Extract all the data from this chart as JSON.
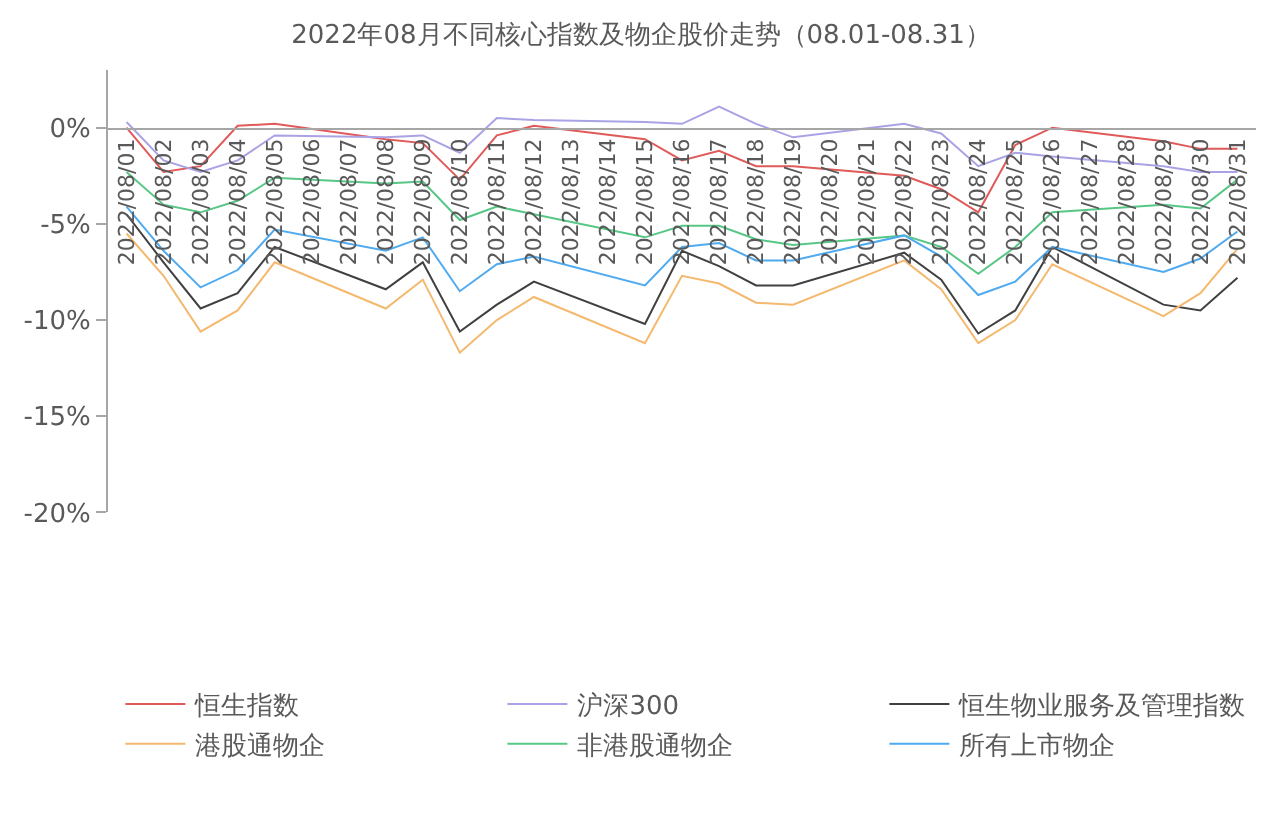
{
  "chart_data": {
    "type": "line",
    "title": "2022年08月不同核心指数及物企股价走势（08.01-08.31）",
    "x": [
      "2022-08-01",
      "2022-08-02",
      "2022-08-03",
      "2022-08-04",
      "2022-08-05",
      "2022-08-08",
      "2022-08-09",
      "2022-08-10",
      "2022-08-11",
      "2022-08-12",
      "2022-08-15",
      "2022-08-16",
      "2022-08-17",
      "2022-08-18",
      "2022-08-19",
      "2022-08-22",
      "2022-08-23",
      "2022-08-24",
      "2022-08-25",
      "2022-08-26",
      "2022-08-29",
      "2022-08-30",
      "2022-08-31"
    ],
    "series": [
      {
        "name": "恒生指数",
        "color": "#e05a5a",
        "values": [
          0.0,
          -2.3,
          -2.0,
          0.1,
          0.2,
          -0.6,
          -0.8,
          -2.7,
          -0.4,
          0.1,
          -0.6,
          -1.7,
          -1.2,
          -2.0,
          -2.0,
          -2.5,
          -3.2,
          -4.4,
          -0.9,
          0.0,
          -0.7,
          -1.1,
          -1.1
        ]
      },
      {
        "name": "沪深300",
        "color": "#a9a3e6",
        "values": [
          0.3,
          -1.7,
          -2.3,
          -1.7,
          -0.4,
          -0.5,
          -0.4,
          -1.3,
          0.5,
          0.4,
          0.3,
          0.2,
          1.1,
          0.2,
          -0.5,
          0.2,
          -0.3,
          -2.0,
          -1.3,
          -1.5,
          -2.0,
          -2.3,
          -2.3
        ]
      },
      {
        "name": "恒生物业服务及管理指数",
        "color": "#404040",
        "values": [
          -4.5,
          -7.0,
          -9.4,
          -8.6,
          -6.2,
          -8.4,
          -7.0,
          -10.6,
          -9.2,
          -8.0,
          -10.2,
          -6.4,
          -7.2,
          -8.2,
          -8.2,
          -6.5,
          -7.9,
          -10.7,
          -9.5,
          -6.2,
          -9.2,
          -9.5,
          -7.8
        ]
      },
      {
        "name": "港股通物企",
        "color": "#f4b96e",
        "values": [
          -5.5,
          -7.7,
          -10.6,
          -9.5,
          -7.0,
          -9.4,
          -7.9,
          -11.7,
          -10.0,
          -8.8,
          -11.2,
          -7.7,
          -8.1,
          -9.1,
          -9.2,
          -6.9,
          -8.4,
          -11.2,
          -10.0,
          -7.1,
          -9.8,
          -8.6,
          -6.3
        ]
      },
      {
        "name": "非港股通物企",
        "color": "#57c785",
        "values": [
          -2.3,
          -4.0,
          -4.4,
          -3.8,
          -2.6,
          -2.9,
          -2.8,
          -4.8,
          -4.1,
          -4.5,
          -5.7,
          -5.1,
          -5.1,
          -5.8,
          -6.1,
          -5.6,
          -6.2,
          -7.6,
          -6.2,
          -4.4,
          -4.0,
          -4.2,
          -2.7
        ]
      },
      {
        "name": "所有上市物企",
        "color": "#4faaf0",
        "values": [
          -4.1,
          -6.4,
          -8.3,
          -7.4,
          -5.3,
          -6.4,
          -5.7,
          -8.5,
          -7.1,
          -6.7,
          -8.2,
          -6.2,
          -6.0,
          -6.9,
          -6.9,
          -5.6,
          -6.7,
          -8.7,
          -8.0,
          -6.2,
          -7.5,
          -6.8,
          -5.4
        ]
      }
    ],
    "xlim": [
      "2022-07-31T12:00",
      "2022-08-31T12:00"
    ],
    "xticks": [
      {
        "value": "2022-08-01",
        "label": "2022/08/01"
      },
      {
        "value": "2022-08-02",
        "label": "2022/08/02"
      },
      {
        "value": "2022-08-03",
        "label": "2022/08/03"
      },
      {
        "value": "2022-08-04",
        "label": "2022/08/04"
      },
      {
        "value": "2022-08-05",
        "label": "2022/08/05"
      },
      {
        "value": "2022-08-06",
        "label": "2022/08/06"
      },
      {
        "value": "2022-08-07",
        "label": "2022/08/07"
      },
      {
        "value": "2022-08-08",
        "label": "2022/08/08"
      },
      {
        "value": "2022-08-09",
        "label": "2022/08/09"
      },
      {
        "value": "2022-08-10",
        "label": "2022/08/10"
      },
      {
        "value": "2022-08-11",
        "label": "2022/08/11"
      },
      {
        "value": "2022-08-12",
        "label": "2022/08/12"
      },
      {
        "value": "2022-08-13",
        "label": "2022/08/13"
      },
      {
        "value": "2022-08-14",
        "label": "2022/08/14"
      },
      {
        "value": "2022-08-15",
        "label": "2022/08/15"
      },
      {
        "value": "2022-08-16",
        "label": "2022/08/16"
      },
      {
        "value": "2022-08-17",
        "label": "2022/08/17"
      },
      {
        "value": "2022-08-18",
        "label": "2022/08/18"
      },
      {
        "value": "2022-08-19",
        "label": "2022/08/19"
      },
      {
        "value": "2022-08-20",
        "label": "2022/08/20"
      },
      {
        "value": "2022-08-21",
        "label": "2022/08/21"
      },
      {
        "value": "2022-08-22",
        "label": "2022/08/22"
      },
      {
        "value": "2022-08-23",
        "label": "2022/08/23"
      },
      {
        "value": "2022-08-24",
        "label": "2022/08/24"
      },
      {
        "value": "2022-08-25",
        "label": "2022/08/25"
      },
      {
        "value": "2022-08-26",
        "label": "2022/08/26"
      },
      {
        "value": "2022-08-27",
        "label": "2022/08/27"
      },
      {
        "value": "2022-08-28",
        "label": "2022/08/28"
      },
      {
        "value": "2022-08-29",
        "label": "2022/08/29"
      },
      {
        "value": "2022-08-30",
        "label": "2022/08/30"
      },
      {
        "value": "2022-08-31",
        "label": "2022/08/31"
      }
    ],
    "ylim": [
      -20,
      3
    ],
    "yticks": [
      {
        "value": 0,
        "label": "0%"
      },
      {
        "value": -5,
        "label": "-5%"
      },
      {
        "value": -10,
        "label": "-10%"
      },
      {
        "value": -15,
        "label": "-15%"
      },
      {
        "value": -20,
        "label": "-20%"
      }
    ],
    "grid": false,
    "legend": "bottom",
    "marker": "none",
    "line_style": "solid"
  }
}
